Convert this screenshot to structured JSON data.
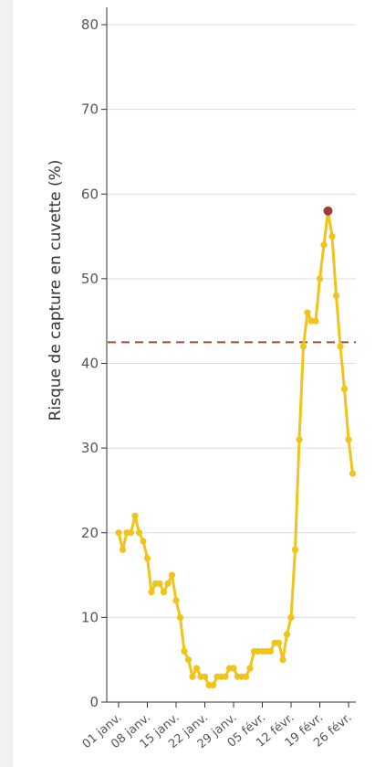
{
  "chart_data": {
    "type": "line",
    "title": "",
    "xlabel": "",
    "ylabel": "Risque de capture en cuvette (%)",
    "ylim": [
      0,
      80
    ],
    "yticks": [
      0,
      10,
      20,
      30,
      40,
      50,
      60,
      70,
      80
    ],
    "grid": "horizontal",
    "xtick_labels": [
      "01 janv.",
      "08 janv.",
      "15 janv.",
      "22 janv.",
      "29 janv.",
      "05 févr.",
      "12 févr.",
      "19 févr.",
      "26 févr."
    ],
    "xtick_days": [
      0,
      7,
      14,
      21,
      28,
      35,
      42,
      49,
      56
    ],
    "series": [
      {
        "color": "#f0c419",
        "x": [
          0,
          1,
          2,
          3,
          4,
          5,
          6,
          7,
          8,
          9,
          10,
          11,
          12,
          13,
          14,
          15,
          16,
          17,
          18,
          19,
          20,
          21,
          22,
          23,
          24,
          25,
          26,
          27,
          28,
          29,
          30,
          31,
          32,
          33,
          34,
          35,
          36,
          37,
          38,
          39,
          40,
          41,
          42,
          43,
          44,
          45,
          46,
          47,
          48,
          49,
          50,
          51,
          52,
          53,
          54,
          55,
          56,
          57
        ],
        "values": [
          20,
          18,
          20,
          20,
          22,
          20,
          19,
          17,
          13,
          14,
          14,
          13,
          14,
          15,
          12,
          10,
          6,
          5,
          3,
          4,
          3,
          3,
          2,
          2,
          3,
          3,
          3,
          4,
          4,
          3,
          3,
          3,
          4,
          6,
          6,
          6,
          6,
          6,
          7,
          7,
          5,
          8,
          10,
          18,
          31,
          42,
          46,
          45,
          45,
          50,
          54,
          58,
          55,
          48,
          42,
          37,
          31,
          27
        ]
      }
    ],
    "highlight": {
      "x": 51,
      "value": 58,
      "color": "#9b3d3d"
    },
    "reference_line": {
      "value": 42.5,
      "color": "#a8483e",
      "style": "dashed"
    }
  }
}
